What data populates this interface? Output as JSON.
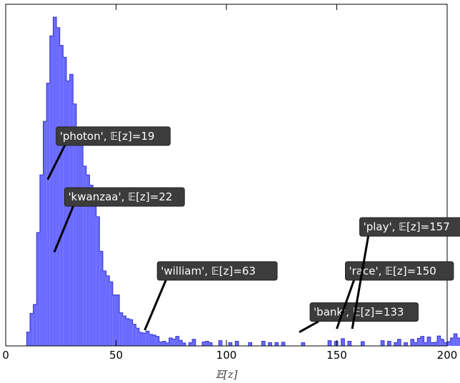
{
  "chart_data": {
    "type": "histogram",
    "title": "",
    "xlabel": "𝔼[z]",
    "ylabel": "",
    "xlim": [
      0,
      200
    ],
    "ylim": [
      0,
      100
    ],
    "x_ticks": [
      "0",
      "50",
      "100",
      "150",
      "200"
    ],
    "y_ticks": [],
    "grid": false,
    "bar_color": "#6a6aff",
    "edge_color": "#3333cc",
    "bin_width": 1.5,
    "x_start": 9.5,
    "values": [
      4.2,
      9.9,
      12.6,
      34.5,
      52.0,
      68.3,
      79.9,
      94.3,
      100.0,
      96.8,
      91.4,
      87.8,
      80.6,
      82.6,
      73.6,
      61.9,
      62.1,
      54.7,
      52.0,
      48.9,
      42.4,
      39.3,
      28.8,
      22.8,
      21.3,
      19.5,
      15.5,
      15.5,
      10.1,
      9.1,
      8.3,
      8.0,
      6.6,
      5.4,
      4.1,
      3.9,
      4.5,
      3.5,
      3.3,
      2.9,
      1.2,
      1.4,
      0.9,
      2.4,
      2.1,
      2.9,
      1.7,
      0.9,
      0.0,
      1.0,
      2.0,
      0.0,
      0.0,
      1.2,
      1.4,
      1.0,
      0.0,
      0.0,
      1.6,
      0.0,
      0.0,
      1.0,
      0.0,
      1.4,
      0.0,
      0.0,
      0.0,
      1.0,
      0.0,
      0.0,
      0.0,
      1.4,
      0.0,
      1.0,
      0.0,
      1.0,
      0.0,
      1.1,
      0.0,
      0.0,
      0.0,
      0.0,
      0.0,
      1.0,
      0.0,
      0.0,
      0.0,
      0.0,
      0.0,
      0.0,
      0.0,
      1.6,
      0.0,
      1.4,
      0.0,
      2.2,
      0.0,
      1.4,
      0.0,
      0.0,
      0.0,
      1.3,
      0.0,
      0.0,
      0.0,
      0.0,
      0.0,
      1.6,
      0.0,
      1.4,
      0.0,
      1.0,
      2.0,
      0.0,
      1.0,
      0.0,
      2.0,
      1.0,
      2.3,
      2.9,
      1.0,
      2.7,
      1.0,
      1.1,
      3.0,
      2.0,
      1.0,
      1.3,
      2.4,
      3.7,
      2.4,
      3.0,
      1.9,
      1.2,
      2.0,
      2.2,
      2.6,
      2.1,
      2.8,
      3.4,
      2.0,
      2.1,
      1.1,
      1.2,
      1.9,
      1.0,
      1.0,
      1.0
    ],
    "annotations": [
      {
        "word": "'photon'",
        "expr": "𝔼[z]=19",
        "value": 19,
        "y": 50.6,
        "tx": 24.5,
        "ty": 63.8
      },
      {
        "word": "'kwanzaa'",
        "expr": "𝔼[z]=22",
        "value": 22,
        "y": 28.5,
        "tx": 28.3,
        "ty": 45.3
      },
      {
        "word": "'william'",
        "expr": "𝔼[z]=63",
        "value": 63,
        "y": 4.8,
        "tx": 70.3,
        "ty": 22.8
      },
      {
        "word": "'bank'",
        "expr": "𝔼[z]=133",
        "value": 133,
        "y": 4.2,
        "tx": 139.5,
        "ty": 10.3
      },
      {
        "word": "'race'",
        "expr": "𝔼[z]=150",
        "value": 150,
        "y": 5.2,
        "tx": 155.5,
        "ty": 22.8
      },
      {
        "word": "'play'",
        "expr": "𝔼[z]=157",
        "value": 157,
        "y": 5.2,
        "tx": 162.0,
        "ty": 36.2
      }
    ],
    "annotation_box_color": "#3c3c3c"
  }
}
